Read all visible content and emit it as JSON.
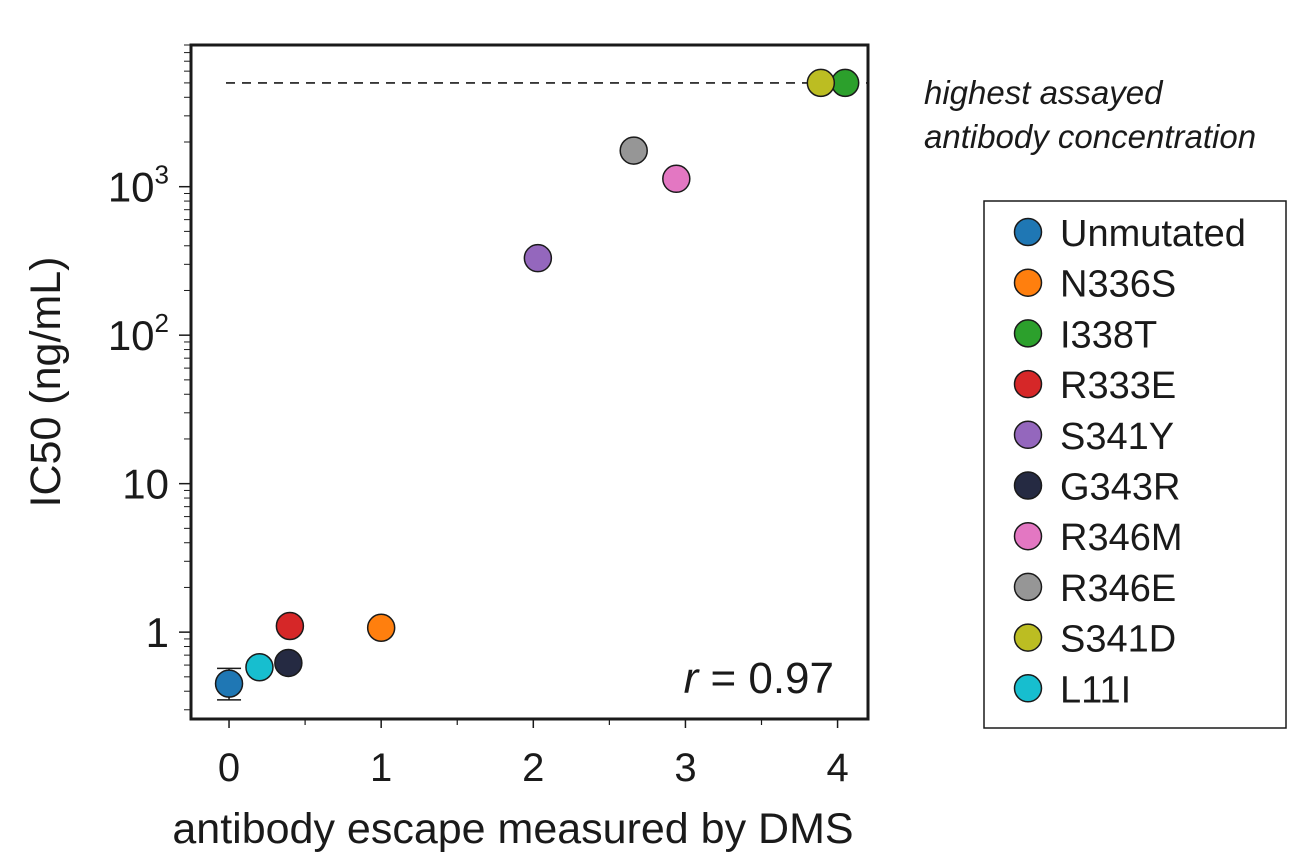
{
  "chart_data": {
    "type": "scatter",
    "xlabel": "antibody escape measured by DMS",
    "ylabel": "IC50 (ng/mL)",
    "x_scale": "linear",
    "y_scale": "log",
    "xlim": [
      -0.25,
      4.2
    ],
    "ylim": [
      0.26,
      9000
    ],
    "x_ticks": [
      0,
      1,
      2,
      3,
      4
    ],
    "x_tick_labels": [
      "0",
      "1",
      "2",
      "3",
      "4"
    ],
    "y_ticks": [
      1,
      10,
      100,
      1000
    ],
    "y_tick_labels": [
      {
        "base": "1",
        "exp": ""
      },
      {
        "base": "10",
        "exp": ""
      },
      {
        "base": "10",
        "exp": "2"
      },
      {
        "base": "10",
        "exp": "3"
      }
    ],
    "grid": false,
    "legend_placement": "right",
    "reference_line": {
      "y": 5000,
      "style": "dashed",
      "label_line1": "highest assayed",
      "label_line2": "antibody concentration"
    },
    "correlation_annotation": {
      "symbol": "r",
      "text": " = 0.97"
    },
    "series": [
      {
        "name": "Unmutated",
        "color": "#1f77b4",
        "x": 0.0,
        "y": 0.45,
        "err_low": 0.35,
        "err_high": 0.57
      },
      {
        "name": "N336S",
        "color": "#ff7f0e",
        "x": 1.0,
        "y": 1.07
      },
      {
        "name": "I338T",
        "color": "#2ca02c",
        "x": 4.05,
        "y": 5000
      },
      {
        "name": "R333E",
        "color": "#d62728",
        "x": 0.4,
        "y": 1.1
      },
      {
        "name": "S341Y",
        "color": "#9467bd",
        "x": 2.03,
        "y": 330
      },
      {
        "name": "G343R",
        "color": "#252a42",
        "x": 0.39,
        "y": 0.62
      },
      {
        "name": "R346M",
        "color": "#e377c2",
        "x": 2.94,
        "y": 1130
      },
      {
        "name": "R346E",
        "color": "#969696",
        "x": 2.66,
        "y": 1750
      },
      {
        "name": "S341D",
        "color": "#bcbd22",
        "x": 3.89,
        "y": 5000
      },
      {
        "name": "L11I",
        "color": "#17becf",
        "x": 0.2,
        "y": 0.58
      }
    ]
  }
}
